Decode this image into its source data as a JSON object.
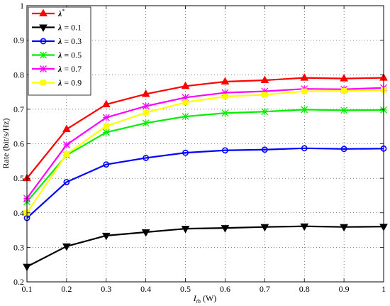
{
  "chart_data": {
    "type": "line",
    "title": "",
    "xlabel": "I",
    "xlabel_sub": "th",
    "xlabel_unit": " (W)",
    "ylabel": "Rate (bit/s/Hz)",
    "xlim": [
      0.1,
      1
    ],
    "ylim": [
      0.2,
      1
    ],
    "grid": "dotted",
    "legend_position": "top-left",
    "x": [
      0.1,
      0.2,
      0.3,
      0.4,
      0.5,
      0.6,
      0.7,
      0.8,
      0.9,
      1.0
    ],
    "x_tick_labels": [
      "0.1",
      "0.2",
      "0.3",
      "0.4",
      "0.5",
      "0.6",
      "0.7",
      "0.8",
      "0.9",
      "1"
    ],
    "y_ticks": [
      0.2,
      0.3,
      0.4,
      0.5,
      0.6,
      0.7,
      0.8,
      0.9,
      1.0
    ],
    "y_tick_labels": [
      "0.2",
      "0.3",
      "0.4",
      "0.5",
      "0.6",
      "0.7",
      "0.8",
      "0.9",
      "1"
    ],
    "series": [
      {
        "name": "λ*",
        "label_main": "λ",
        "label_sup": "*",
        "label_rest": "",
        "color": "#ff0000",
        "marker": "triangle-up",
        "values": [
          0.5,
          0.642,
          0.714,
          0.744,
          0.767,
          0.78,
          0.784,
          0.791,
          0.789,
          0.791
        ]
      },
      {
        "name": "λ = 0.1",
        "label_main": "λ",
        "label_sup": "",
        "label_rest": " = 0.1",
        "color": "#000000",
        "marker": "triangle-down",
        "values": [
          0.244,
          0.303,
          0.334,
          0.344,
          0.354,
          0.356,
          0.359,
          0.361,
          0.359,
          0.36
        ]
      },
      {
        "name": "λ = 0.3",
        "label_main": "λ",
        "label_sup": "",
        "label_rest": " = 0.3",
        "color": "#0000ff",
        "marker": "circle",
        "values": [
          0.385,
          0.489,
          0.54,
          0.559,
          0.574,
          0.581,
          0.583,
          0.587,
          0.585,
          0.586
        ]
      },
      {
        "name": "λ = 0.5",
        "label_main": "λ",
        "label_sup": "",
        "label_rest": " = 0.5",
        "color": "#00ee00",
        "marker": "star",
        "values": [
          0.432,
          0.567,
          0.633,
          0.66,
          0.679,
          0.689,
          0.693,
          0.699,
          0.697,
          0.698
        ]
      },
      {
        "name": "λ = 0.7",
        "label_main": "λ",
        "label_sup": "",
        "label_rest": " = 0.7",
        "color": "#ff00ff",
        "marker": "x",
        "values": [
          0.442,
          0.597,
          0.676,
          0.709,
          0.734,
          0.748,
          0.752,
          0.759,
          0.758,
          0.762
        ]
      },
      {
        "name": "λ = 0.9",
        "label_main": "λ",
        "label_sup": "",
        "label_rest": " = 0.9",
        "color": "#ffff00",
        "marker": "square",
        "values": [
          0.4,
          0.57,
          0.651,
          0.69,
          0.72,
          0.737,
          0.742,
          0.752,
          0.753,
          0.756
        ]
      }
    ]
  }
}
